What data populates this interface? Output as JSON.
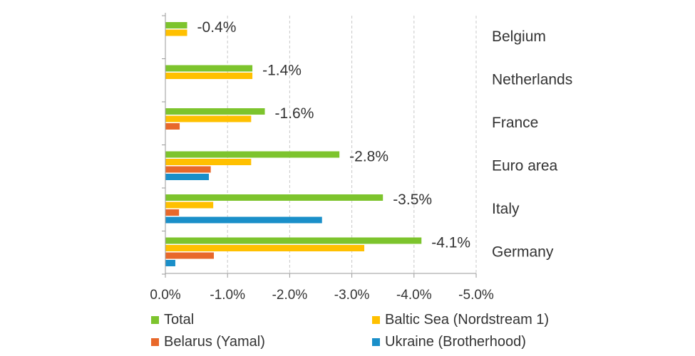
{
  "chart_data": {
    "type": "bar",
    "orientation": "horizontal",
    "categories": [
      "Belgium",
      "Netherlands",
      "France",
      "Euro area",
      "Italy",
      "Germany"
    ],
    "series": [
      {
        "name": "Total",
        "color": "#7DC42D",
        "values": [
          -0.35,
          -1.4,
          -1.6,
          -2.8,
          -3.5,
          -4.12
        ]
      },
      {
        "name": "Baltic Sea (Nordstream 1)",
        "color": "#FFC000",
        "values": [
          -0.35,
          -1.4,
          -1.38,
          -1.38,
          -0.77,
          -3.2
        ]
      },
      {
        "name": "Belarus (Yamal)",
        "color": "#E8682A",
        "values": [
          0,
          0,
          -0.23,
          -0.73,
          -0.22,
          -0.78
        ]
      },
      {
        "name": "Ukraine (Brotherhood)",
        "color": "#1A8FC9",
        "values": [
          0,
          0,
          0,
          -0.7,
          -2.52,
          -0.16
        ]
      }
    ],
    "data_labels": [
      "-0.4%",
      "-1.4%",
      "-1.6%",
      "-2.8%",
      "-3.5%",
      "-4.1%"
    ],
    "x_ticks": [
      0,
      -1,
      -2,
      -3,
      -4,
      -5
    ],
    "x_tick_labels": [
      "0.0%",
      "-1.0%",
      "-2.0%",
      "-3.0%",
      "-4.0%",
      "-5.0%"
    ],
    "xlim": [
      0,
      -5
    ],
    "x_axis_reversed": true,
    "grid": "vertical dashed",
    "legend_position": "bottom",
    "title": "",
    "xlabel": "",
    "ylabel": ""
  }
}
